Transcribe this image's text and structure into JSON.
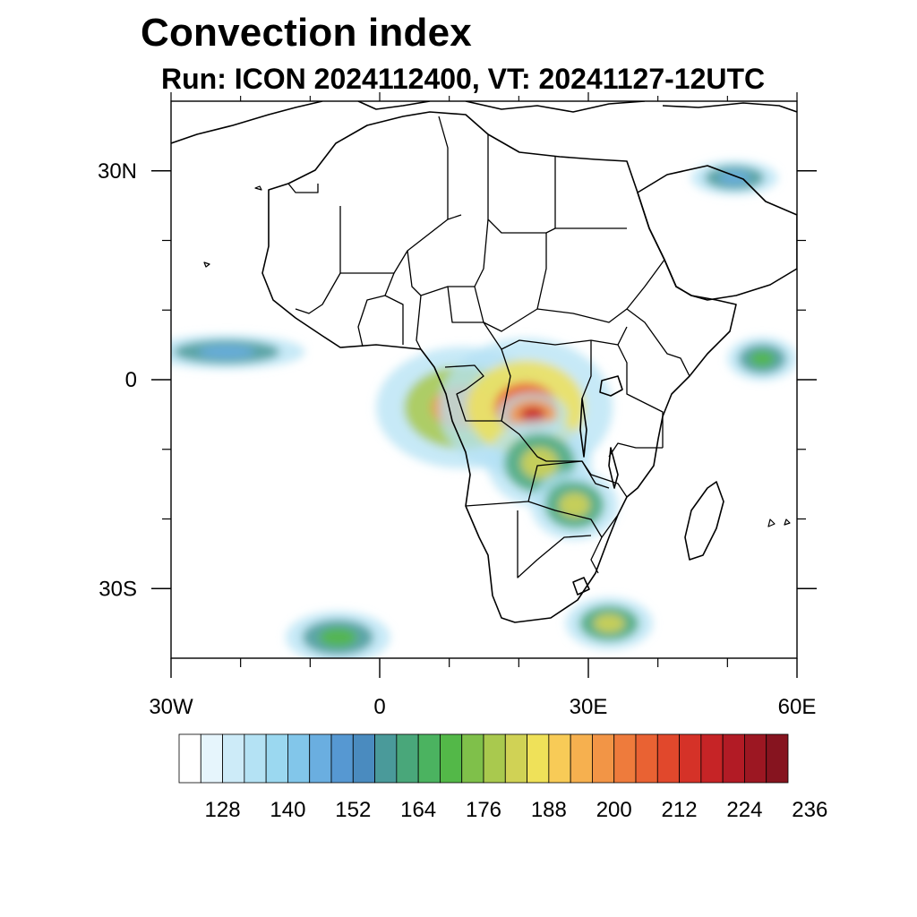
{
  "title": "Convection index",
  "subtitle": "Run: ICON 2024112400,  VT: 20241127-12UTC",
  "map": {
    "projection": "lat-lon",
    "lon_range": [
      -30,
      60
    ],
    "lat_range": [
      -40,
      40
    ],
    "x_ticks": [
      {
        "lon": -30,
        "label": "30W"
      },
      {
        "lon": 0,
        "label": "0"
      },
      {
        "lon": 30,
        "label": "30E"
      },
      {
        "lon": 60,
        "label": "60E"
      }
    ],
    "y_ticks": [
      {
        "lat": 30,
        "label": "30N"
      },
      {
        "lat": 0,
        "label": "0"
      },
      {
        "lat": -30,
        "label": "30S"
      }
    ]
  },
  "colorbar": {
    "colors": [
      "#ffffff",
      "#e6f5fc",
      "#cdebf8",
      "#b4e2f4",
      "#9bd8f0",
      "#82c6ea",
      "#6aaee0",
      "#5698d2",
      "#4a8bbf",
      "#4a9a9a",
      "#49a77a",
      "#4bb360",
      "#53b848",
      "#7fc04a",
      "#a9c94e",
      "#d0d255",
      "#efe159",
      "#f8cb57",
      "#f6b04f",
      "#f29546",
      "#ee7b3c",
      "#e96233",
      "#e1482c",
      "#d53228",
      "#c62426",
      "#b21b25",
      "#9c1722",
      "#86141f"
    ],
    "tick_labels": [
      "128",
      "140",
      "152",
      "164",
      "176",
      "188",
      "200",
      "212",
      "224",
      "236"
    ]
  },
  "chart_data": {
    "type": "heatmap",
    "variable": "Convection index",
    "regions": [
      {
        "lon": 12,
        "lat": -4,
        "rx": 10,
        "ry": 7,
        "level": 190
      },
      {
        "lon": 21,
        "lat": -4,
        "rx": 10,
        "ry": 8,
        "level": 200
      },
      {
        "lon": 22,
        "lat": -5,
        "rx": 4,
        "ry": 2.5,
        "level": 212
      },
      {
        "lon": 23,
        "lat": -12,
        "rx": 6,
        "ry": 5,
        "level": 176
      },
      {
        "lon": 28,
        "lat": -18,
        "rx": 5,
        "ry": 4,
        "level": 176
      },
      {
        "lon": 33,
        "lat": -35,
        "rx": 5,
        "ry": 3,
        "level": 176
      },
      {
        "lon": 55,
        "lat": 3,
        "rx": 4,
        "ry": 2.5,
        "level": 164
      },
      {
        "lon": -6,
        "lat": -37,
        "rx": 6,
        "ry": 3,
        "level": 164
      },
      {
        "lon": -22,
        "lat": 4,
        "rx": 9,
        "ry": 2,
        "level": 140
      },
      {
        "lon": 51,
        "lat": 29,
        "rx": 5,
        "ry": 2,
        "level": 140
      }
    ]
  }
}
